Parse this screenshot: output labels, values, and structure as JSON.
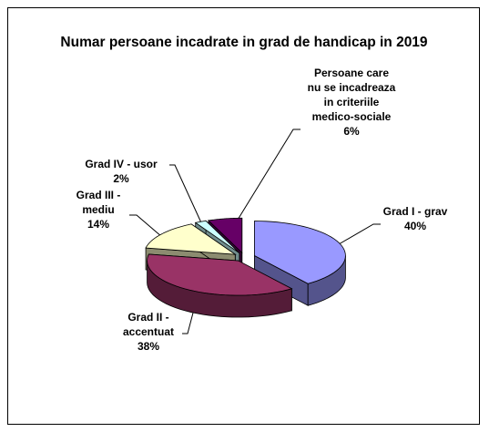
{
  "chart_data": {
    "type": "pie",
    "title": "Numar persoane incadrate in grad de handicap in 2019",
    "categories": [
      "Grad I - grav",
      "Grad II - accentuat",
      "Grad III - mediu",
      "Grad IV - usor",
      "Persoane care nu se incadreaza in criteriile medico-sociale"
    ],
    "values": [
      40,
      38,
      14,
      2,
      6
    ],
    "value_labels": [
      "40%",
      "38%",
      "14%",
      "2%",
      "6%"
    ],
    "colors": [
      "#9999ff",
      "#993366",
      "#ffffcc",
      "#ccffff",
      "#660066"
    ]
  }
}
